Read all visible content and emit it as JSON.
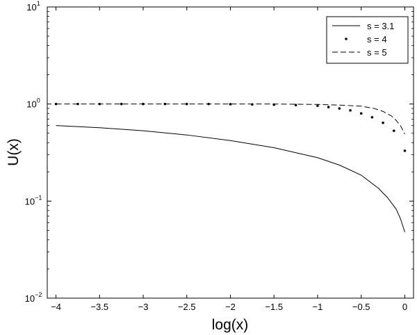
{
  "chart_data": {
    "type": "line",
    "title": "",
    "xlabel": "log(x)",
    "ylabel": "U(x)",
    "xlim": [
      -4.1,
      0.1
    ],
    "ylim": [
      0.01,
      10
    ],
    "yscale": "log",
    "x_ticks": [
      "-4",
      "-3.5",
      "-3",
      "-2.5",
      "-2",
      "-1.5",
      "-1",
      "-0.5",
      "0"
    ],
    "y_ticks": [
      {
        "base": "10",
        "exp": "-2"
      },
      {
        "base": "10",
        "exp": "-1"
      },
      {
        "base": "10",
        "exp": "0"
      },
      {
        "base": "10",
        "exp": "1"
      }
    ],
    "grid": false,
    "legend_position": "top-right",
    "series": [
      {
        "name": "s = 3.1",
        "style": "solid",
        "x": [
          -4,
          -3.5,
          -3,
          -2.5,
          -2,
          -1.5,
          -1,
          -0.75,
          -0.5,
          -0.3,
          -0.2,
          -0.1,
          -0.05,
          0
        ],
        "y": [
          0.6,
          0.57,
          0.53,
          0.48,
          0.42,
          0.355,
          0.28,
          0.235,
          0.185,
          0.135,
          0.109,
          0.083,
          0.066,
          0.048
        ]
      },
      {
        "name": "s = 4",
        "style": "dotted",
        "x": [
          -4,
          -3.75,
          -3.5,
          -3.25,
          -3,
          -2.75,
          -2.5,
          -2.25,
          -2,
          -1.75,
          -1.5,
          -1.25,
          -1,
          -0.875,
          -0.75,
          -0.625,
          -0.5,
          -0.375,
          -0.25,
          -0.125,
          0
        ],
        "y": [
          1.0,
          1.0,
          1.0,
          1.0,
          1.0,
          1.0,
          1.0,
          1.0,
          0.995,
          0.99,
          0.985,
          0.975,
          0.96,
          0.93,
          0.9,
          0.86,
          0.8,
          0.73,
          0.64,
          0.53,
          0.33
        ]
      },
      {
        "name": "s = 5",
        "style": "dashed",
        "x": [
          -4,
          -3.5,
          -3,
          -2.5,
          -2,
          -1.5,
          -1,
          -0.75,
          -0.5,
          -0.35,
          -0.25,
          -0.15,
          -0.1,
          -0.05,
          0
        ],
        "y": [
          1.0,
          1.0,
          1.0,
          1.0,
          1.0,
          1.0,
          0.99,
          0.975,
          0.95,
          0.9,
          0.84,
          0.75,
          0.68,
          0.6,
          0.49
        ]
      }
    ]
  }
}
